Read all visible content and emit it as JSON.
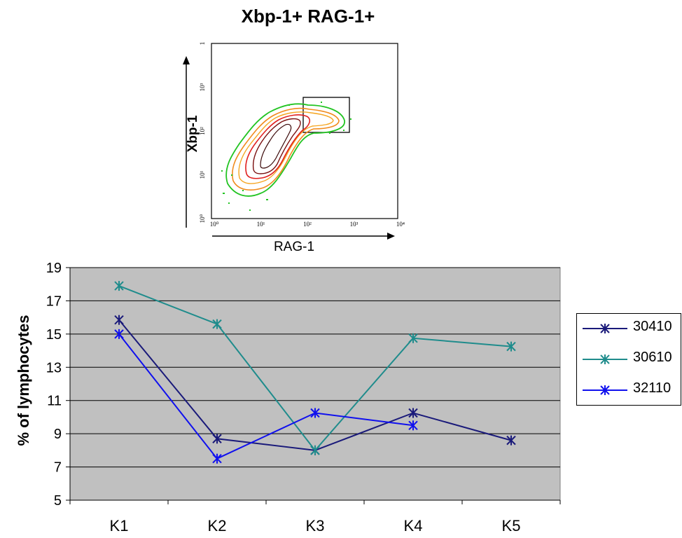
{
  "flow_plot": {
    "title": "Xbp-1+ RAG-1+",
    "xlabel": "RAG-1",
    "ylabel": "Xbp-1",
    "x_ticks": [
      "10⁰",
      "10¹",
      "10²",
      "10³",
      "10⁴"
    ],
    "y_ticks": [
      "10⁰",
      "10¹",
      "10²",
      "10³",
      "1"
    ]
  },
  "chart_data": {
    "type": "line",
    "categories": [
      "K1",
      "K2",
      "K3",
      "K4",
      "K5"
    ],
    "ylabel": "% of lymphocytes",
    "xlabel": "",
    "ylim": [
      5,
      19
    ],
    "y_ticks": [
      5,
      7,
      9,
      11,
      13,
      15,
      17,
      19
    ],
    "grid": true,
    "legend_placement": "right",
    "background": "#c0c0c0",
    "series": [
      {
        "name": "30410",
        "color": "#1a1a7a",
        "values": [
          15.85,
          8.7,
          8.0,
          10.25,
          8.6
        ]
      },
      {
        "name": "30610",
        "color": "#1f8c8c",
        "values": [
          17.9,
          15.6,
          8.0,
          14.75,
          14.25
        ]
      },
      {
        "name": "32110",
        "color": "#1010ee",
        "values": [
          15.0,
          7.5,
          10.25,
          9.5,
          null
        ]
      }
    ]
  }
}
